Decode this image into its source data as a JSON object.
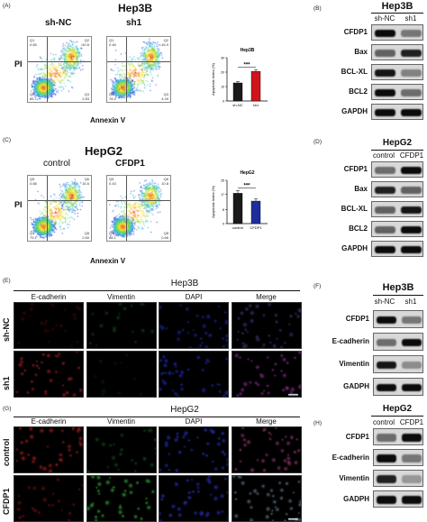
{
  "panels": {
    "A": {
      "label": "(A)",
      "cell_line": "Hep3B",
      "groups": [
        "sh-NC",
        "sh1"
      ],
      "axes": {
        "y": "PI",
        "x": "Annexin V"
      },
      "quadrants": [
        {
          "q1": "Q1",
          "q1v": "0.85",
          "q2": "Q2",
          "q2v": "10.6",
          "q3": "Q3",
          "q3v": "2.83",
          "q4": "Q4",
          "q4v": "85.7"
        },
        {
          "q1": "Q1",
          "q1v": "0.46",
          "q2": "Q2",
          "q2v": "16.9",
          "q3": "Q3",
          "q3v": "4.49",
          "q4": "Q4",
          "q4v": "78.4"
        }
      ],
      "inset_title": "Hep3B",
      "inset_ylabel": "Apoptosis Index (%)",
      "significance": "***",
      "chart_data": {
        "type": "bar",
        "categories": [
          "sh-NC",
          "sh1"
        ],
        "values": [
          12.5,
          20.5
        ],
        "errors": [
          1.0,
          1.0
        ],
        "ylim": [
          0,
          30
        ],
        "colors": [
          "#1a1a1a",
          "#d0141b"
        ]
      }
    },
    "B": {
      "label": "(B)",
      "cell_line": "Hep3B",
      "columns": [
        "sh-NC",
        "sh1"
      ],
      "proteins": [
        "CFDP1",
        "Bax",
        "BCL-XL",
        "BCL2",
        "GAPDH"
      ]
    },
    "C": {
      "label": "(C)",
      "cell_line": "HepG2",
      "groups": [
        "control",
        "CFDP1"
      ],
      "axes": {
        "y": "PI",
        "x": "Annexin V"
      },
      "quadrants": [
        {
          "q1": "Q5",
          "q1v": "0.88",
          "q2": "Q6",
          "q2v": "16.6",
          "q3": "Q8",
          "q3v": "2.60",
          "q4": "Q7",
          "q4v": "79.1"
        },
        {
          "q1": "Q5",
          "q1v": "0.43",
          "q2": "Q6",
          "q2v": "10.8",
          "q3": "Q8",
          "q3v": "0.66",
          "q4": "Q7",
          "q4v": "88.1"
        }
      ],
      "inset_title": "HepG2",
      "inset_ylabel": "Apoptosis Index (%)",
      "significance": "***",
      "chart_data": {
        "type": "bar",
        "categories": [
          "control",
          "CFDP1"
        ],
        "values": [
          17.5,
          13.0
        ],
        "errors": [
          1.5,
          1.2
        ],
        "ylim": [
          0,
          25
        ],
        "colors": [
          "#1a1a1a",
          "#1f2c9e"
        ]
      }
    },
    "D": {
      "label": "(D)",
      "cell_line": "HepG2",
      "columns": [
        "control",
        "CFDP1"
      ],
      "proteins": [
        "CFDP1",
        "Bax",
        "BCL-XL",
        "BCL2",
        "GAPDH"
      ]
    },
    "E": {
      "label": "(E)",
      "cell_line": "Hep3B",
      "columns": [
        "E-cadherin",
        "Vimentin",
        "DAPI",
        "Merge"
      ],
      "rows": [
        "sh-NC",
        "sh1"
      ]
    },
    "F": {
      "label": "(F)",
      "cell_line": "Hep3B",
      "columns": [
        "sh-NC",
        "sh1"
      ],
      "proteins": [
        "CFDP1",
        "E-cadherin",
        "Vimentin",
        "GADPH"
      ]
    },
    "G": {
      "label": "(G)",
      "cell_line": "HepG2",
      "columns": [
        "E-cadherin",
        "Vimentin",
        "DAPI",
        "Merge"
      ],
      "rows": [
        "control",
        "CFDP1"
      ]
    },
    "H": {
      "label": "(H)",
      "cell_line": "HepG2",
      "columns": [
        "control",
        "CFDP1"
      ],
      "proteins": [
        "CFDP1",
        "E-cadherin",
        "Vimentin",
        "GADPH"
      ]
    }
  }
}
